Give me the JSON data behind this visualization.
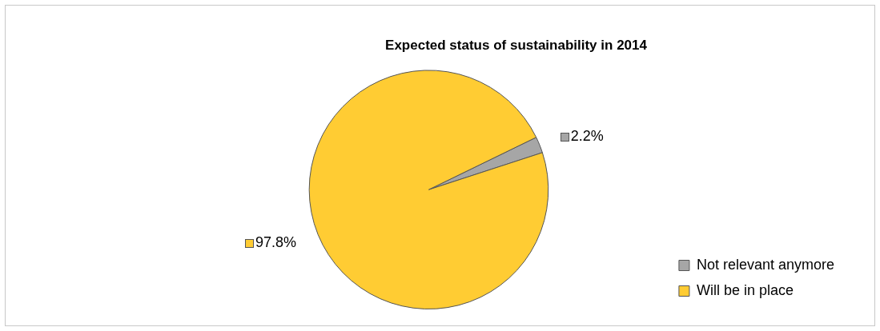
{
  "chart_data": {
    "type": "pie",
    "title": "Expected status of sustainability in 2014",
    "categories": [
      "Not relevant anymore",
      "Will be in place"
    ],
    "values": [
      2.2,
      97.8
    ],
    "colors": [
      "#a6a6a6",
      "#ffcc33"
    ],
    "value_labels": [
      "2.2%",
      "97.8%"
    ],
    "legend": "bottom right"
  }
}
